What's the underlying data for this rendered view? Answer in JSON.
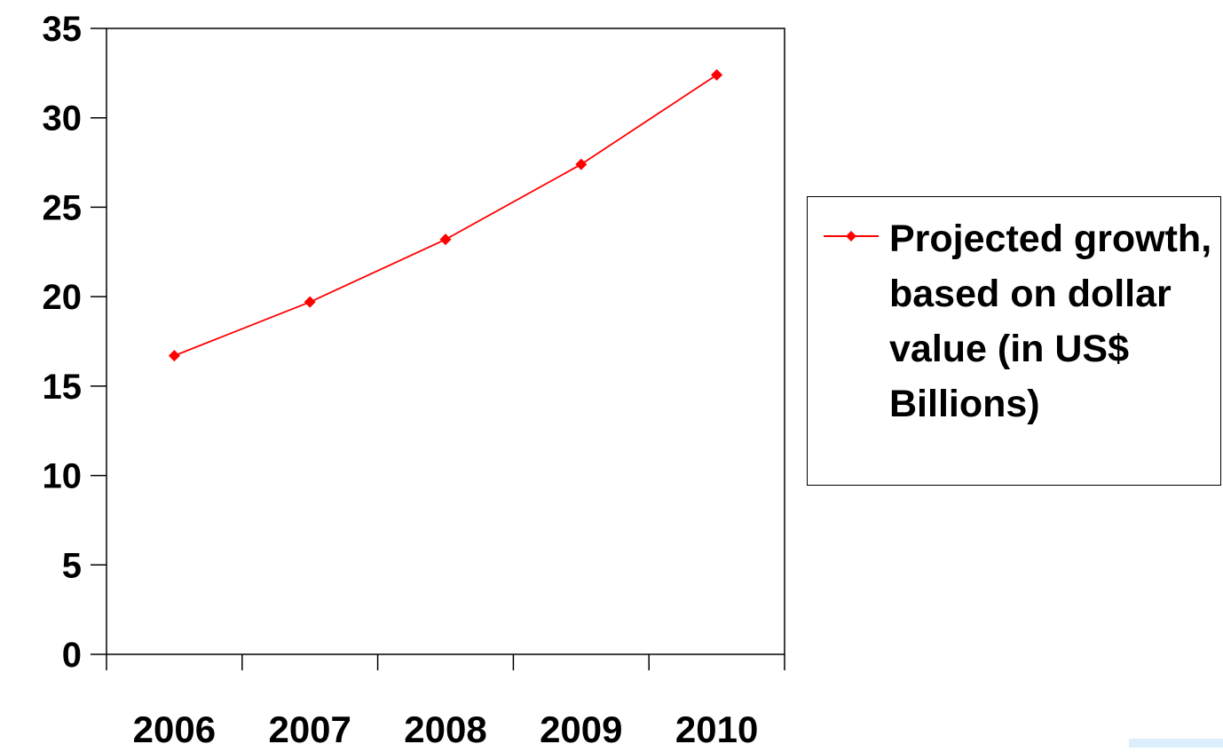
{
  "chart_data": {
    "type": "line",
    "title": "",
    "xlabel": "",
    "ylabel": "",
    "categories": [
      "2006",
      "2007",
      "2008",
      "2009",
      "2010"
    ],
    "series": [
      {
        "name": "Projected growth, based on dollar value (in US$ Billions)",
        "values": [
          16.7,
          19.7,
          23.2,
          27.4,
          32.4
        ],
        "color": "#ff0000",
        "marker": "diamond"
      }
    ],
    "ylim": [
      0,
      35
    ],
    "yticks": [
      0,
      5,
      10,
      15,
      20,
      25,
      30,
      35
    ],
    "ytick_labels": [
      "0",
      "5",
      "10",
      "15",
      "20",
      "25",
      "30",
      "35"
    ],
    "grid": false,
    "legend_position": "right"
  },
  "colors": {
    "series_line": "#ff0000",
    "axes": "#000000",
    "corner_box": "#dbeefb"
  }
}
